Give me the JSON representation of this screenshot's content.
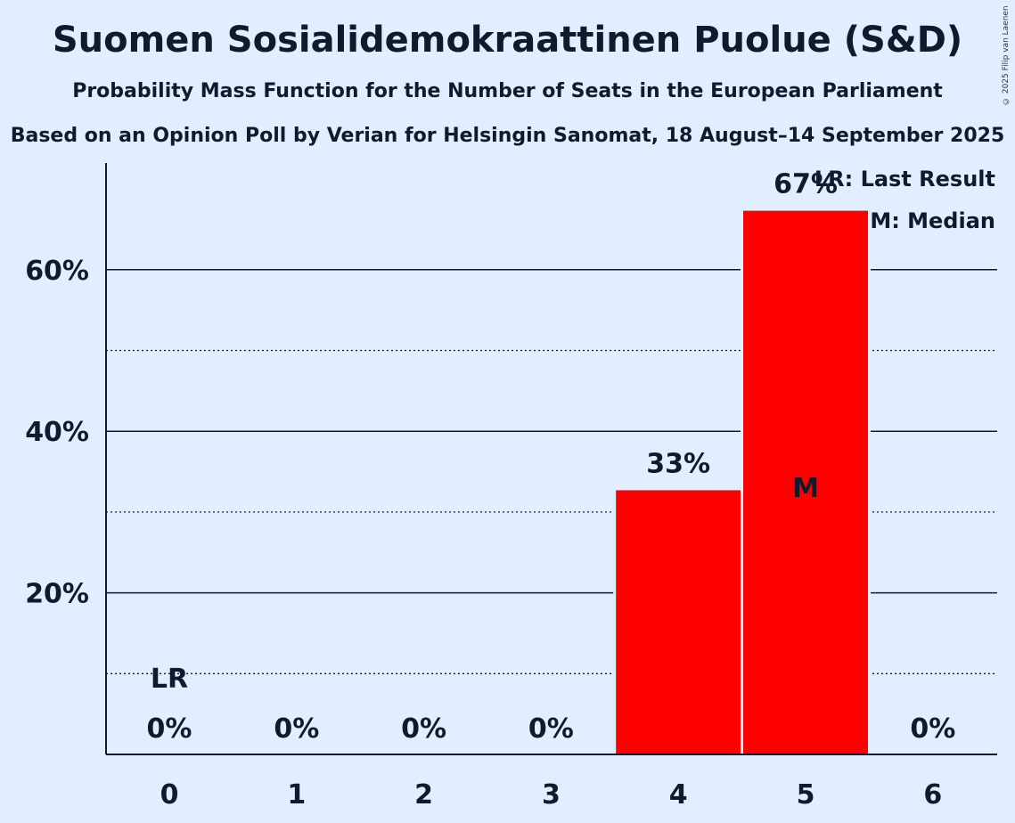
{
  "title": "Suomen Sosialidemokraattinen Puolue (S&D)",
  "subtitle": "Probability Mass Function for the Number of Seats in the European Parliament",
  "subtitle2": "Based on an Opinion Poll by Verian for Helsingin Sanomat, 18 August–14 September 2025",
  "copyright": "© 2025 Filip van Laenen",
  "colors": {
    "bar": "#ff0000",
    "background": "#e1eeff",
    "text": "#0f1a2e"
  },
  "chart_data": {
    "type": "bar",
    "categories": [
      "0",
      "1",
      "2",
      "3",
      "4",
      "5",
      "6"
    ],
    "values": [
      0,
      0,
      0,
      0,
      32.7,
      67.3,
      0
    ],
    "value_labels": [
      "0%",
      "0%",
      "0%",
      "0%",
      "33%",
      "67%",
      "0%"
    ],
    "yticks": [
      20,
      40,
      60
    ],
    "ytick_labels": [
      "20%",
      "40%",
      "60%"
    ],
    "minor_gridlines": [
      10,
      30,
      50
    ],
    "ylim": [
      0,
      73.5
    ],
    "last_result": {
      "seats": "0",
      "label": "LR"
    },
    "median": {
      "seats": "5",
      "label": "M"
    },
    "legend": [
      "LR: Last Result",
      "M: Median"
    ],
    "legend_position": "top-right"
  }
}
